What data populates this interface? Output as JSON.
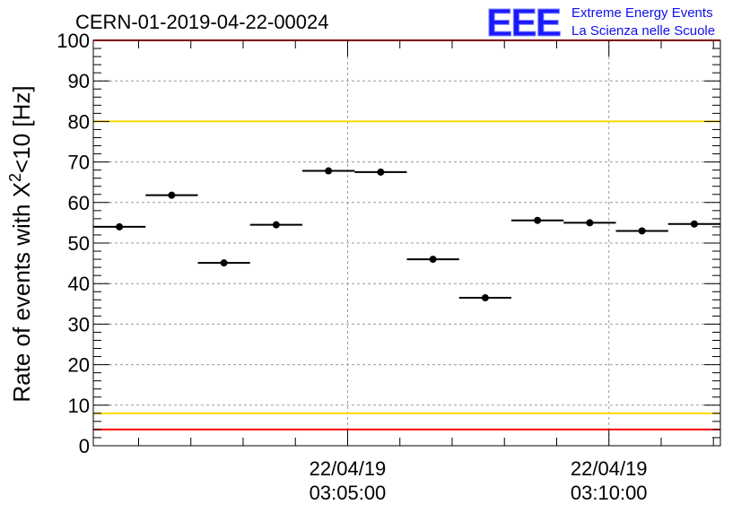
{
  "title": "CERN-01-2019-04-22-00024",
  "logo": {
    "mark": "EEE",
    "line1": "Extreme Energy Events",
    "line2": "La Scienza nelle Scuole",
    "color": "#1a1aff"
  },
  "chart_data": {
    "type": "scatter",
    "title": "CERN-01-2019-04-22-00024",
    "xlabel": "",
    "ylabel": "Rate of events with X²<10 [Hz]",
    "ylim": [
      0,
      100
    ],
    "yticks": [
      0,
      10,
      20,
      30,
      40,
      50,
      60,
      70,
      80,
      90,
      100
    ],
    "xlim": [
      "2019-04-22 03:00:08",
      "2019-04-22 03:12:08"
    ],
    "xticks": [
      {
        "date": "22/04/19",
        "time": "03:05:00",
        "x": "2019-04-22 03:05:00"
      },
      {
        "date": "22/04/19",
        "time": "03:10:00",
        "x": "2019-04-22 03:10:00"
      }
    ],
    "grid": true,
    "series": [
      {
        "points": [
          {
            "x": "2019-04-22 03:00:38",
            "y": 54.0
          },
          {
            "x": "2019-04-22 03:01:38",
            "y": 61.8
          },
          {
            "x": "2019-04-22 03:02:38",
            "y": 45.1
          },
          {
            "x": "2019-04-22 03:03:38",
            "y": 54.5
          },
          {
            "x": "2019-04-22 03:04:38",
            "y": 67.8
          },
          {
            "x": "2019-04-22 03:05:38",
            "y": 67.5
          },
          {
            "x": "2019-04-22 03:06:38",
            "y": 46.0
          },
          {
            "x": "2019-04-22 03:07:38",
            "y": 36.5
          },
          {
            "x": "2019-04-22 03:08:38",
            "y": 55.6
          },
          {
            "x": "2019-04-22 03:09:38",
            "y": 55.0
          },
          {
            "x": "2019-04-22 03:10:38",
            "y": 53.0
          },
          {
            "x": "2019-04-22 03:11:38",
            "y": 54.7
          }
        ],
        "x_error": "±30 s",
        "color": "#000000"
      }
    ],
    "reference_lines": [
      {
        "y": 100,
        "color": "#ff0000"
      },
      {
        "y": 80,
        "color": "#ffd700"
      },
      {
        "y": 8,
        "color": "#ffd700"
      },
      {
        "y": 4,
        "color": "#ff0000"
      }
    ]
  }
}
